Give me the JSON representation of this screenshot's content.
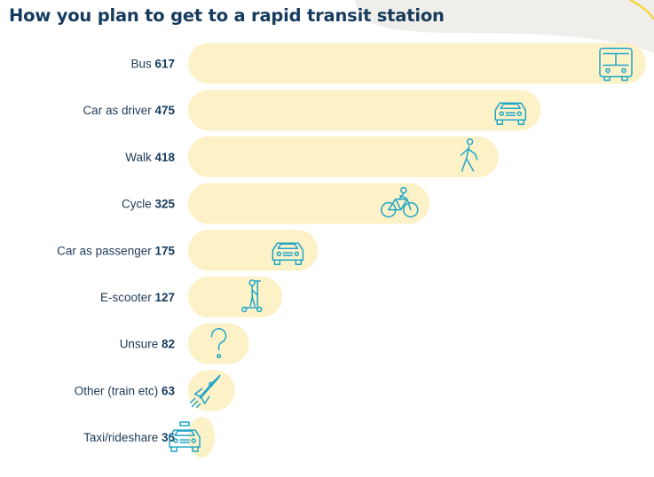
{
  "chart_data": {
    "type": "bar",
    "orientation": "horizontal",
    "title": "How you plan to get to a rapid transit station",
    "categories": [
      "Bus",
      "Car as driver",
      "Walk",
      "Cycle",
      "Car as passenger",
      "E-scooter",
      "Unsure",
      "Other (train etc)",
      "Taxi/rideshare"
    ],
    "values": [
      617,
      475,
      418,
      325,
      175,
      127,
      82,
      63,
      36
    ],
    "icons": [
      "bus-icon",
      "car-icon",
      "walking-person-icon",
      "bicycle-icon",
      "car-icon",
      "e-scooter-icon",
      "question-mark-icon",
      "rocket-icon",
      "taxi-icon"
    ],
    "colors": {
      "bar": "#fdf1c8",
      "icon": "#1ea6c7",
      "text": "#163b5c",
      "background_shape": "#f0eeea"
    }
  }
}
